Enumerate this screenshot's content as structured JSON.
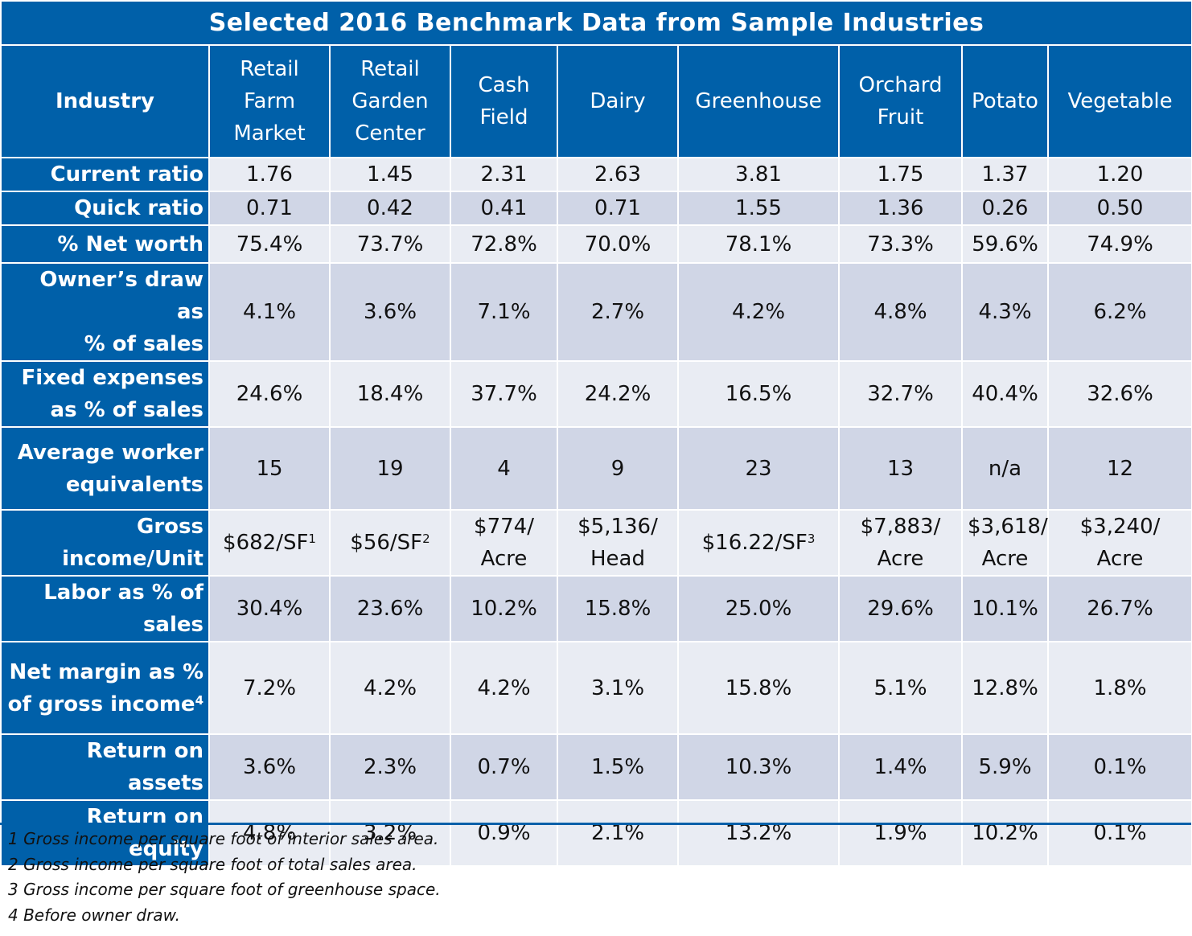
{
  "title": "Selected 2016 Benchmark Data from Sample Industries",
  "corner_header": "Industry",
  "columns": [
    {
      "lines": [
        "Retail",
        "Farm",
        "Market"
      ]
    },
    {
      "lines": [
        "Retail",
        "Garden",
        "Center"
      ]
    },
    {
      "lines": [
        "Cash",
        "Field"
      ]
    },
    {
      "lines": [
        "Dairy"
      ]
    },
    {
      "lines": [
        "Greenhouse"
      ]
    },
    {
      "lines": [
        "Orchard",
        "Fruit"
      ]
    },
    {
      "lines": [
        "Potato"
      ]
    },
    {
      "lines": [
        "Vegetable"
      ]
    }
  ],
  "rows": [
    {
      "label": [
        "Current ratio"
      ],
      "values": [
        "1.76",
        "1.45",
        "2.31",
        "2.63",
        "3.81",
        "1.75",
        "1.37",
        "1.20"
      ]
    },
    {
      "label": [
        "Quick ratio"
      ],
      "values": [
        "0.71",
        "0.42",
        "0.41",
        "0.71",
        "1.55",
        "1.36",
        "0.26",
        "0.50"
      ]
    },
    {
      "label": [
        "% Net worth"
      ],
      "values": [
        "75.4%",
        "73.7%",
        "72.8%",
        "70.0%",
        "78.1%",
        "73.3%",
        "59.6%",
        "74.9%"
      ]
    },
    {
      "label": [
        "Owner’s draw as",
        "% of sales"
      ],
      "values": [
        "4.1%",
        "3.6%",
        "7.1%",
        "2.7%",
        "4.2%",
        "4.8%",
        "4.3%",
        "6.2%"
      ]
    },
    {
      "label": [
        "Fixed expenses",
        "as % of sales"
      ],
      "values": [
        "24.6%",
        "18.4%",
        "37.7%",
        "24.2%",
        "16.5%",
        "32.7%",
        "40.4%",
        "32.6%"
      ]
    },
    {
      "label": [
        "Average worker",
        "equivalents"
      ],
      "values": [
        "15",
        "19",
        "4",
        "9",
        "23",
        "13",
        "n/a",
        "12"
      ]
    },
    {
      "label": [
        "Gross",
        "income/Unit"
      ],
      "values": [
        "$682/SF",
        "$56/SF",
        "$774/\nAcre",
        "$5,136/\nHead",
        "$16.22/SF",
        "$7,883/\nAcre",
        "$3,618/\nAcre",
        "$3,240/\nAcre"
      ],
      "sups": [
        "1",
        "2",
        "",
        "",
        "3",
        "",
        "",
        ""
      ]
    },
    {
      "label": [
        "Labor as % of",
        "sales"
      ],
      "values": [
        "30.4%",
        "23.6%",
        "10.2%",
        "15.8%",
        "25.0%",
        "29.6%",
        "10.1%",
        "26.7%"
      ]
    },
    {
      "label": [
        "Net margin as %",
        "of gross income"
      ],
      "label_sup": "4",
      "values": [
        "7.2%",
        "4.2%",
        "4.2%",
        "3.1%",
        "15.8%",
        "5.1%",
        "12.8%",
        "1.8%"
      ]
    },
    {
      "label": [
        "Return on assets"
      ],
      "values": [
        "3.6%",
        "2.3%",
        "0.7%",
        "1.5%",
        "10.3%",
        "1.4%",
        "5.9%",
        "0.1%"
      ]
    },
    {
      "label": [
        "Return on equity"
      ],
      "values": [
        "4.8%",
        "3.2%",
        "0.9%",
        "2.1%",
        "13.2%",
        "1.9%",
        "10.2%",
        "0.1%"
      ]
    }
  ],
  "footnotes": [
    "1 Gross income per square foot of interior sales area.",
    "2 Gross income per square foot of total sales area.",
    "3 Gross income per square foot of greenhouse space.",
    "4 Before owner draw."
  ],
  "colors": {
    "header_blue": "#0060a9",
    "row_light": "#e9ecf3",
    "row_dark": "#d0d6e6"
  }
}
